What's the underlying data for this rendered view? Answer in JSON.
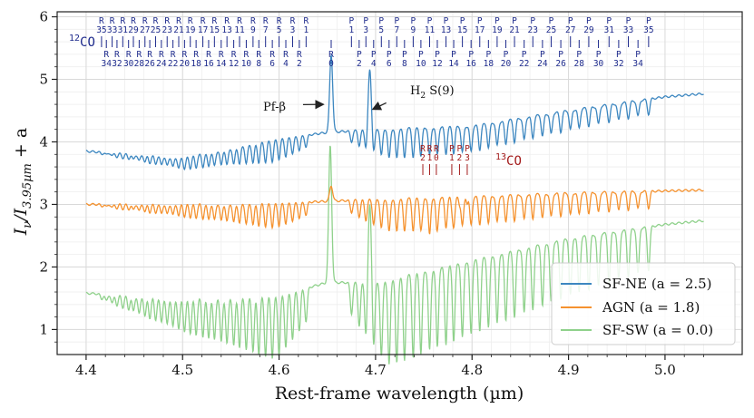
{
  "chart_data": {
    "type": "line",
    "title": "",
    "xlabel": "Rest-frame wavelength (µm)",
    "ylabel_main": "I",
    "ylabel_sub1": "ν",
    "ylabel_sep": "/I",
    "ylabel_sub2": "3.95µm",
    "ylabel_tail": " + a",
    "xlim": [
      4.37,
      5.08
    ],
    "ylim": [
      0.6,
      6.08
    ],
    "grid": true,
    "legend_position": "bottom-right",
    "xticks": [
      4.4,
      4.5,
      4.6,
      4.7,
      4.8,
      4.9,
      5.0
    ],
    "xtick_labels": [
      "4.4",
      "4.5",
      "4.6",
      "4.7",
      "4.8",
      "4.9",
      "5.0"
    ],
    "yticks": [
      1,
      2,
      3,
      4,
      5,
      6
    ],
    "ytick_labels": [
      "1",
      "2",
      "3",
      "4",
      "5",
      "6"
    ],
    "series": [
      {
        "name": "SF-NE (a = 2.5)",
        "color": "#3d87c0",
        "x_range": [
          4.4,
          5.04
        ],
        "baseline": [
          [
            4.4,
            3.85
          ],
          [
            4.5,
            3.75
          ],
          [
            4.6,
            4.05
          ],
          [
            4.65,
            4.15
          ],
          [
            4.7,
            4.2
          ],
          [
            4.8,
            4.25
          ],
          [
            4.9,
            4.5
          ],
          [
            5.0,
            4.72
          ],
          [
            5.04,
            4.77
          ]
        ],
        "absorption_depth": 0.45,
        "peaks": [
          {
            "x": 4.654,
            "y": 5.4
          },
          {
            "x": 4.694,
            "y": 5.15
          }
        ]
      },
      {
        "name": "AGN (a = 1.8)",
        "color": "#f5922f",
        "x_range": [
          4.4,
          5.04
        ],
        "baseline": [
          [
            4.4,
            3.0
          ],
          [
            4.6,
            3.02
          ],
          [
            4.7,
            3.08
          ],
          [
            4.8,
            3.12
          ],
          [
            4.9,
            3.18
          ],
          [
            5.04,
            3.23
          ]
        ],
        "absorption_depth": 0.5,
        "peaks": [
          {
            "x": 4.654,
            "y": 3.3
          }
        ]
      },
      {
        "name": "SF-SW (a = 0.0)",
        "color": "#8fd18b",
        "x_range": [
          4.4,
          5.04
        ],
        "baseline": [
          [
            4.4,
            1.58
          ],
          [
            4.5,
            1.5
          ],
          [
            4.6,
            1.55
          ],
          [
            4.65,
            1.75
          ],
          [
            4.7,
            1.75
          ],
          [
            4.8,
            2.1
          ],
          [
            4.9,
            2.45
          ],
          [
            5.0,
            2.68
          ],
          [
            5.04,
            2.74
          ]
        ],
        "absorption_depth": 1.3,
        "peaks": [
          {
            "x": 4.653,
            "y": 3.95
          },
          {
            "x": 4.694,
            "y": 3.0
          }
        ]
      }
    ],
    "annotations": [
      {
        "text": "Pf-β",
        "x": 4.606,
        "y": 4.61,
        "arrow_to": [
          4.646,
          4.6
        ]
      },
      {
        "text_main": "H",
        "text_sub": "2",
        "text_tail": " S(9)",
        "x": 4.728,
        "y": 4.74,
        "arrow_to": [
          4.697,
          4.52
        ]
      }
    ],
    "co12": {
      "label": "12",
      "label_tail": "CO",
      "color": "#1d2a8c",
      "R_top_labels": [
        "35",
        "33",
        "31",
        "29",
        "27",
        "25",
        "23",
        "21",
        "19",
        "17",
        "15",
        "13",
        "11",
        "9",
        "7",
        "5",
        "3",
        "1"
      ],
      "R_top_x": [
        4.416,
        4.427,
        4.438,
        4.449,
        4.461,
        4.472,
        4.484,
        4.496,
        4.508,
        4.521,
        4.533,
        4.546,
        4.559,
        4.573,
        4.586,
        4.6,
        4.614,
        4.628
      ],
      "R_bottom_labels": [
        "34",
        "32",
        "30",
        "28",
        "26",
        "24",
        "22",
        "20",
        "18",
        "16",
        "14",
        "12",
        "10",
        "8",
        "6",
        "4",
        "2",
        "0"
      ],
      "R_bottom_x": [
        4.421,
        4.432,
        4.444,
        4.455,
        4.466,
        4.478,
        4.49,
        4.502,
        4.514,
        4.527,
        4.54,
        4.553,
        4.566,
        4.579,
        4.593,
        4.607,
        4.621,
        4.654
      ],
      "P_top_labels": [
        "1",
        "3",
        "5",
        "7",
        "9",
        "11",
        "13",
        "15",
        "17",
        "19",
        "21",
        "23",
        "25",
        "27",
        "29",
        "31",
        "33",
        "35"
      ],
      "P_top_x": [
        4.675,
        4.69,
        4.706,
        4.722,
        4.739,
        4.756,
        4.773,
        4.79,
        4.808,
        4.826,
        4.844,
        4.863,
        4.882,
        4.902,
        4.921,
        4.942,
        4.962,
        4.983
      ],
      "P_bottom_labels": [
        "2",
        "4",
        "6",
        "8",
        "10",
        "12",
        "14",
        "16",
        "18",
        "20",
        "22",
        "24",
        "26",
        "28",
        "30",
        "32",
        "34"
      ],
      "P_bottom_x": [
        4.683,
        4.698,
        4.714,
        4.73,
        4.747,
        4.764,
        4.781,
        4.799,
        4.817,
        4.835,
        4.854,
        4.873,
        4.892,
        4.911,
        4.931,
        4.952,
        4.972
      ],
      "R_letter": "R",
      "P_letter": "P"
    },
    "co13": {
      "label": "13",
      "label_tail": "CO",
      "color": "#a31b1b",
      "lines": [
        {
          "branch": "R",
          "j": "2",
          "x": 4.749
        },
        {
          "branch": "R",
          "j": "1",
          "x": 4.756
        },
        {
          "branch": "R",
          "j": "0",
          "x": 4.763
        },
        {
          "branch": "P",
          "j": "1",
          "x": 4.779
        },
        {
          "branch": "P",
          "j": "2",
          "x": 4.787
        },
        {
          "branch": "P",
          "j": "3",
          "x": 4.795
        }
      ]
    }
  }
}
